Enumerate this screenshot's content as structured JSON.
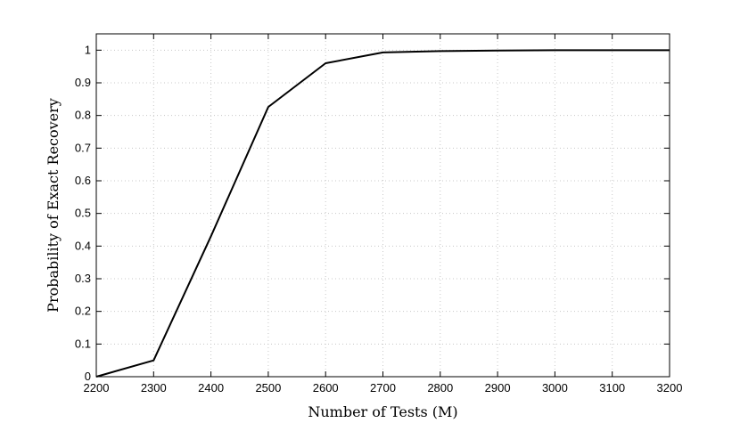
{
  "chart_data": {
    "type": "line",
    "title": "",
    "xlabel": "Number of Tests (M)",
    "ylabel": "Probability of Exact Recovery",
    "xlim": [
      2200,
      3200
    ],
    "ylim": [
      0,
      1.05
    ],
    "grid": true,
    "legend": "none",
    "xticks": [
      2200,
      2300,
      2400,
      2500,
      2600,
      2700,
      2800,
      2900,
      3000,
      3100,
      3200
    ],
    "yticks": [
      0,
      0.1,
      0.2,
      0.3,
      0.4,
      0.5,
      0.6,
      0.7,
      0.8,
      0.9,
      1
    ],
    "xtick_labels": [
      "2200",
      "2300",
      "2400",
      "2500",
      "2600",
      "2700",
      "2800",
      "2900",
      "3000",
      "3100",
      "3200"
    ],
    "ytick_labels": [
      "0",
      "0.1",
      "0.2",
      "0.3",
      "0.4",
      "0.5",
      "0.6",
      "0.7",
      "0.8",
      "0.9",
      "1"
    ],
    "series": [
      {
        "color": "#000000",
        "x": [
          2200,
          2300,
          2400,
          2500,
          2600,
          2700,
          2800,
          2900,
          3000,
          3100,
          3200
        ],
        "y": [
          0,
          0.05,
          0.43,
          0.826,
          0.96,
          0.993,
          0.997,
          0.999,
          1.0,
          1.0,
          1.0
        ]
      }
    ]
  }
}
